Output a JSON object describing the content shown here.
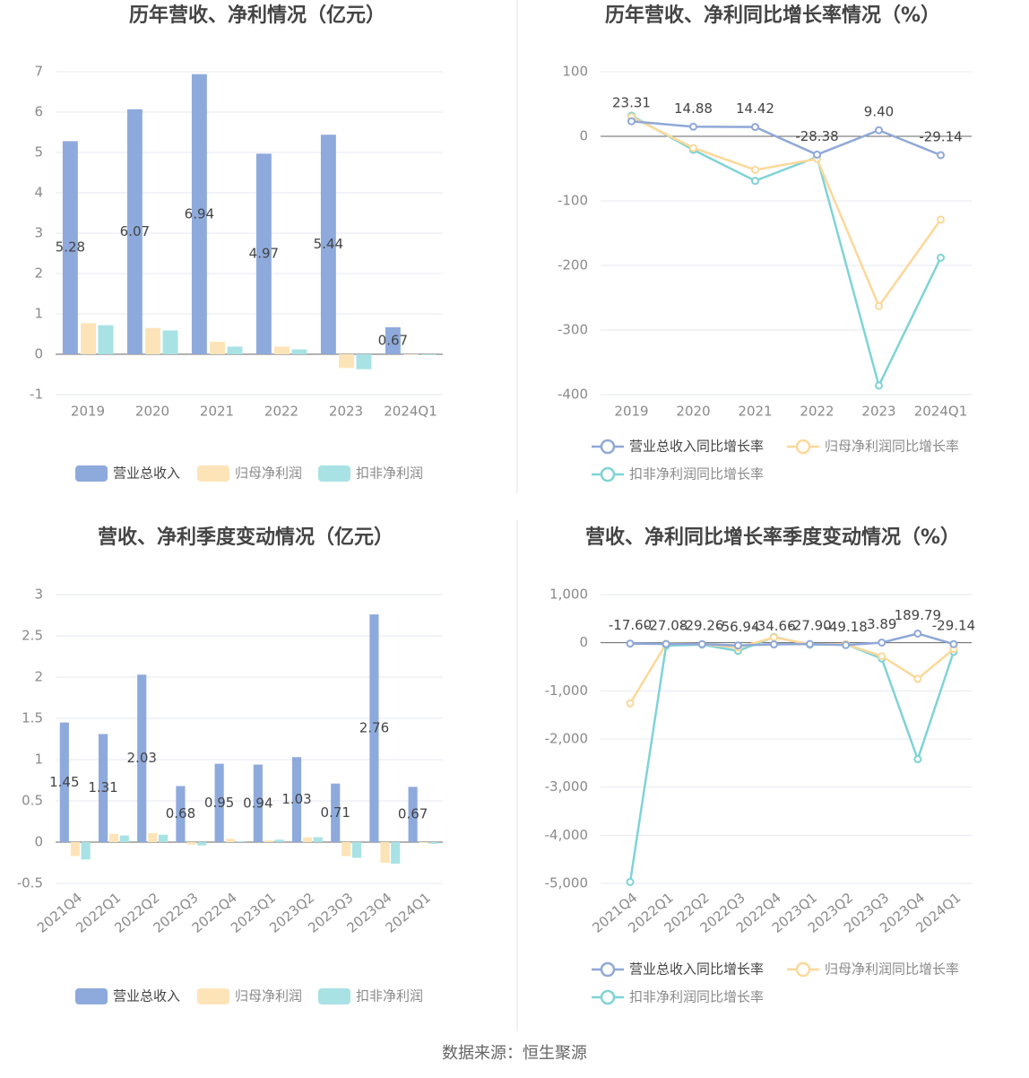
{
  "chart_data": [
    {
      "type": "bar",
      "title": "历年营收、净利情况（亿元）",
      "categories": [
        "2019",
        "2020",
        "2021",
        "2022",
        "2023",
        "2024Q1"
      ],
      "series": [
        {
          "name": "营业总收入",
          "color": "#8eaadc",
          "data_labels": true,
          "values": [
            5.28,
            6.07,
            6.94,
            4.97,
            5.44,
            0.67
          ]
        },
        {
          "name": "归母净利润",
          "color": "#fde4b8",
          "values": [
            0.77,
            0.65,
            0.31,
            0.19,
            -0.34,
            -0.01
          ]
        },
        {
          "name": "扣非净利润",
          "color": "#a8e2e4",
          "values": [
            0.72,
            0.59,
            0.19,
            0.12,
            -0.37,
            -0.02
          ]
        }
      ],
      "ylim": [
        -1,
        7
      ],
      "yticks": [
        -1,
        0,
        1,
        2,
        3,
        4,
        5,
        6,
        7
      ],
      "grid": true
    },
    {
      "type": "line",
      "title": "历年营收、净利同比增长率情况（%）",
      "categories": [
        "2019",
        "2020",
        "2021",
        "2022",
        "2023",
        "2024Q1"
      ],
      "series": [
        {
          "name": "营业总收入同比增长率",
          "color": "#8fa8d8",
          "values": [
            23.31,
            14.88,
            14.42,
            -28.38,
            9.4,
            -29.14
          ],
          "value_labels": [
            "23.31",
            "14.88",
            "14.42",
            "-28.38",
            "9.40",
            "-29.14"
          ]
        },
        {
          "name": "归母净利润同比增长率",
          "color": "#fcd89a",
          "values": [
            30,
            -18,
            -52,
            -35,
            -263,
            -129
          ]
        },
        {
          "name": "扣非净利润同比增长率",
          "color": "#7fd3d6",
          "values": [
            32,
            -21,
            -69,
            -32,
            -386,
            -188
          ]
        }
      ],
      "ylim": [
        -400,
        100
      ],
      "yticks": [
        -400,
        -300,
        -200,
        -100,
        0,
        100
      ],
      "grid": true
    },
    {
      "type": "bar",
      "title": "营收、净利季度变动情况（亿元）",
      "categories": [
        "2021Q4",
        "2022Q1",
        "2022Q2",
        "2022Q3",
        "2022Q4",
        "2023Q1",
        "2023Q2",
        "2023Q3",
        "2023Q4",
        "2024Q1"
      ],
      "series": [
        {
          "name": "营业总收入",
          "color": "#8eaadc",
          "data_labels": true,
          "values": [
            1.45,
            1.31,
            2.03,
            0.68,
            0.95,
            0.94,
            1.03,
            0.71,
            2.76,
            0.67
          ]
        },
        {
          "name": "归母净利润",
          "color": "#fde4b8",
          "values": [
            -0.17,
            0.1,
            0.11,
            -0.03,
            0.04,
            0.02,
            0.06,
            -0.17,
            -0.25,
            -0.01
          ]
        },
        {
          "name": "扣非净利润",
          "color": "#a8e2e4",
          "values": [
            -0.21,
            0.08,
            0.09,
            -0.04,
            0.01,
            0.03,
            0.06,
            -0.19,
            -0.26,
            -0.02
          ]
        }
      ],
      "ylim": [
        -0.5,
        3
      ],
      "yticks": [
        -0.5,
        0,
        0.5,
        1,
        1.5,
        2,
        2.5,
        3
      ],
      "grid": true
    },
    {
      "type": "line",
      "title": "营收、净利同比增长率季度变动情况（%）",
      "categories": [
        "2021Q4",
        "2022Q1",
        "2022Q2",
        "2022Q3",
        "2022Q4",
        "2023Q1",
        "2023Q2",
        "2023Q3",
        "2023Q4",
        "2024Q1"
      ],
      "series": [
        {
          "name": "营业总收入同比增长率",
          "color": "#8fa8d8",
          "values": [
            -17.6,
            -27.08,
            -29.26,
            -56.94,
            -34.66,
            -27.9,
            -49.18,
            3.89,
            189.79,
            -29.14
          ],
          "value_labels": [
            "-17.60",
            "-27.08",
            "-29.26",
            "-56.94",
            "-34.66",
            "-27.90",
            "-49.18",
            "3.89",
            "189.79",
            "-29.14"
          ]
        },
        {
          "name": "归母净利润同比增长率",
          "color": "#fcd89a",
          "values": [
            -1260,
            -20,
            -30,
            -100,
            110,
            -30,
            -30,
            -280,
            -750,
            -130
          ]
        },
        {
          "name": "扣非净利润同比增长率",
          "color": "#7fd3d6",
          "values": [
            -4970,
            -60,
            -40,
            -170,
            120,
            -40,
            -30,
            -330,
            -2420,
            -188
          ]
        }
      ],
      "ylim": [
        -5000,
        1000
      ],
      "yticks": [
        {
          "value": -5000,
          "label": "-5,000"
        },
        {
          "value": -4000,
          "label": "-4,000"
        },
        {
          "value": -3000,
          "label": "-3,000"
        },
        {
          "value": -2000,
          "label": "-2,000"
        },
        {
          "value": -1000,
          "label": "-1,000"
        },
        0,
        {
          "value": 1000,
          "label": "1,000"
        }
      ],
      "grid": true
    }
  ],
  "source": "数据来源：恒生聚源"
}
